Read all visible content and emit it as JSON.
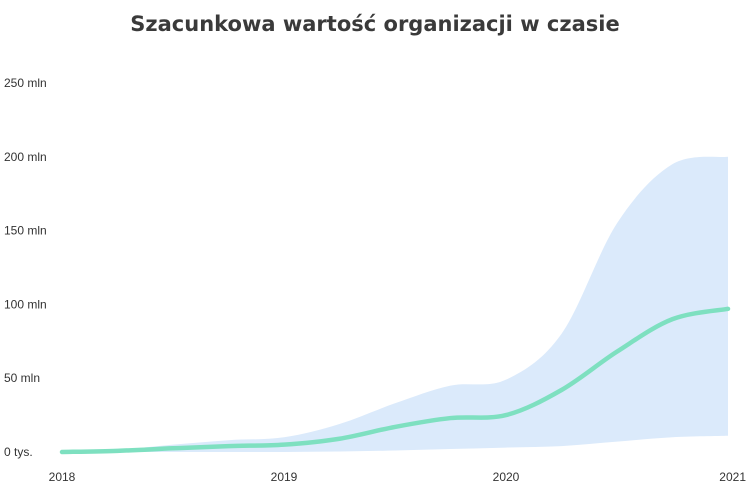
{
  "chart_data": {
    "type": "area",
    "title": "Szacunkowa wartość organizacji w czasie",
    "xlabel": "",
    "ylabel": "",
    "x_ticks": [
      "2018",
      "2019",
      "2020",
      "2021"
    ],
    "y_ticks": [
      "0 tys.",
      "50 mln",
      "100 mln",
      "150 mln",
      "200 mln",
      "250 mln"
    ],
    "y_tick_values": [
      0,
      50,
      100,
      150,
      200,
      250
    ],
    "ylim": [
      0,
      250
    ],
    "xlim": [
      2018,
      2021
    ],
    "grid": false,
    "legend": "none",
    "colors": {
      "line": "#7ee0c0",
      "band": "#dbeafb",
      "title": "#3a3a3a",
      "text": "#333333"
    },
    "series": [
      {
        "x": [
          2018,
          2018.25,
          2018.5,
          2018.75,
          2019,
          2019.25,
          2019.5,
          2019.75,
          2020,
          2020.25,
          2020.5,
          2020.75,
          2021
        ],
        "values": [
          0,
          0.8,
          2.5,
          4,
          5,
          9,
          17,
          23,
          25,
          42,
          68,
          90,
          97
        ]
      },
      {
        "x": [
          2018,
          2018.25,
          2018.5,
          2018.75,
          2019,
          2019.25,
          2019.5,
          2019.75,
          2020,
          2020.25,
          2020.5,
          2020.75,
          2021
        ],
        "lower": [
          0,
          0,
          0,
          0,
          0,
          0.3,
          1,
          2,
          3,
          4,
          7,
          10,
          11
        ],
        "upper": [
          0,
          1.5,
          5,
          8,
          10,
          19,
          33,
          45,
          49,
          80,
          155,
          195,
          200
        ]
      }
    ]
  }
}
